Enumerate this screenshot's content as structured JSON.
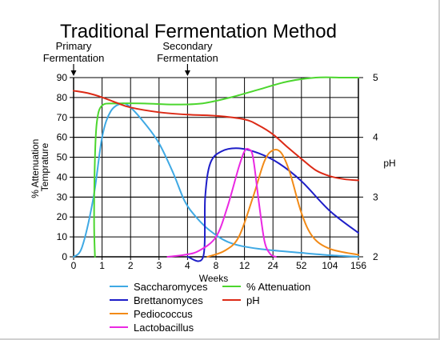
{
  "chart_data": {
    "type": "line",
    "title": "Traditional Fermentation Method",
    "annotations": [
      {
        "text_lines": [
          "Primary",
          "Fermentation"
        ],
        "x_category": "0",
        "arrow": "down"
      },
      {
        "text_lines": [
          "Secondary",
          "Fermentation"
        ],
        "x_category": "4",
        "arrow": "down"
      }
    ],
    "xlabel": "Weeks",
    "x_categories": [
      "0",
      "1",
      "2",
      "3",
      "4",
      "8",
      "12",
      "24",
      "52",
      "104",
      "156"
    ],
    "ylabel_left": [
      "% Attenuation",
      "Temprature"
    ],
    "ylim_left": [
      0,
      90
    ],
    "yticks_left": [
      0,
      10,
      20,
      30,
      40,
      50,
      60,
      70,
      80,
      90
    ],
    "ylabel_right": "pH",
    "ylim_right": [
      2,
      5
    ],
    "yticks_right": [
      2,
      3,
      4,
      5
    ],
    "grid": true,
    "legend_position": "bottom",
    "series": [
      {
        "name": "Saccharomyces",
        "color": "#3fa9e4",
        "axis": "left",
        "points": [
          [
            0,
            0
          ],
          [
            0.3,
            5
          ],
          [
            0.7,
            30
          ],
          [
            1.0,
            60
          ],
          [
            1.3,
            73
          ],
          [
            1.7,
            77
          ],
          [
            2.0,
            75
          ],
          [
            2.5,
            67
          ],
          [
            3.0,
            57
          ],
          [
            3.5,
            42
          ],
          [
            3.9,
            28
          ],
          [
            4.3,
            20
          ],
          [
            4.8,
            13
          ],
          [
            5.5,
            7
          ],
          [
            6.5,
            4
          ],
          [
            8,
            2
          ],
          [
            9,
            0.8
          ],
          [
            10,
            0
          ]
        ]
      },
      {
        "name": "Brettanomyces",
        "color": "#1e1ec8",
        "axis": "left",
        "points": [
          [
            4.0,
            0
          ],
          [
            4.55,
            0
          ],
          [
            4.62,
            30
          ],
          [
            4.8,
            47
          ],
          [
            5.2,
            53
          ],
          [
            5.8,
            54.5
          ],
          [
            6.5,
            52
          ],
          [
            7.2,
            47
          ],
          [
            8.0,
            38
          ],
          [
            9.0,
            23
          ],
          [
            10.0,
            12
          ]
        ]
      },
      {
        "name": "Pediococcus",
        "color": "#f28a17",
        "axis": "left",
        "points": [
          [
            4.7,
            0
          ],
          [
            5.3,
            3
          ],
          [
            5.8,
            10
          ],
          [
            6.3,
            30
          ],
          [
            6.7,
            48
          ],
          [
            7.0,
            53.5
          ],
          [
            7.3,
            52
          ],
          [
            7.6,
            42
          ],
          [
            8.0,
            22
          ],
          [
            8.4,
            10
          ],
          [
            9.0,
            4
          ],
          [
            10.0,
            1
          ]
        ]
      },
      {
        "name": "% Attenuation",
        "color": "#4cd62e",
        "axis": "left",
        "points": [
          [
            0.75,
            0
          ],
          [
            0.72,
            18
          ],
          [
            0.75,
            50
          ],
          [
            0.82,
            68
          ],
          [
            1.0,
            76
          ],
          [
            1.5,
            77
          ],
          [
            2.5,
            77
          ],
          [
            3.5,
            76.5
          ],
          [
            4.5,
            77
          ],
          [
            5.5,
            80
          ],
          [
            6.5,
            84
          ],
          [
            7.5,
            88
          ],
          [
            8.5,
            90
          ],
          [
            9.5,
            90
          ],
          [
            10.0,
            90
          ]
        ]
      },
      {
        "name": "pH",
        "color": "#dc2a16",
        "axis": "right",
        "points": [
          [
            0,
            4.78
          ],
          [
            0.5,
            4.74
          ],
          [
            1.0,
            4.67
          ],
          [
            1.5,
            4.58
          ],
          [
            2.0,
            4.5
          ],
          [
            3.0,
            4.42
          ],
          [
            4.0,
            4.38
          ],
          [
            5.0,
            4.36
          ],
          [
            6.0,
            4.3
          ],
          [
            6.5,
            4.2
          ],
          [
            7.0,
            4.05
          ],
          [
            7.5,
            3.84
          ],
          [
            8.0,
            3.64
          ],
          [
            8.5,
            3.45
          ],
          [
            9.0,
            3.35
          ],
          [
            9.5,
            3.3
          ],
          [
            10.0,
            3.28
          ]
        ]
      },
      {
        "name": "Lactobacillus",
        "color": "#ea28e2",
        "axis": "left",
        "points": [
          [
            3.3,
            0
          ],
          [
            3.9,
            1
          ],
          [
            4.4,
            3
          ],
          [
            5.0,
            10
          ],
          [
            5.4,
            25
          ],
          [
            5.8,
            45
          ],
          [
            6.0,
            53
          ],
          [
            6.15,
            54
          ],
          [
            6.3,
            50
          ],
          [
            6.5,
            28
          ],
          [
            6.7,
            8
          ],
          [
            6.9,
            1.5
          ],
          [
            7.1,
            0
          ]
        ]
      }
    ]
  },
  "legend": [
    {
      "name": "Saccharomyces",
      "color": "#3fa9e4"
    },
    {
      "name": "% Attenuation",
      "color": "#4cd62e"
    },
    {
      "name": "Brettanomyces",
      "color": "#1e1ec8"
    },
    {
      "name": "pH",
      "color": "#dc2a16"
    },
    {
      "name": "Pediococcus",
      "color": "#f28a17"
    },
    {
      "name": "Lactobacillus",
      "color": "#ea28e2"
    }
  ]
}
